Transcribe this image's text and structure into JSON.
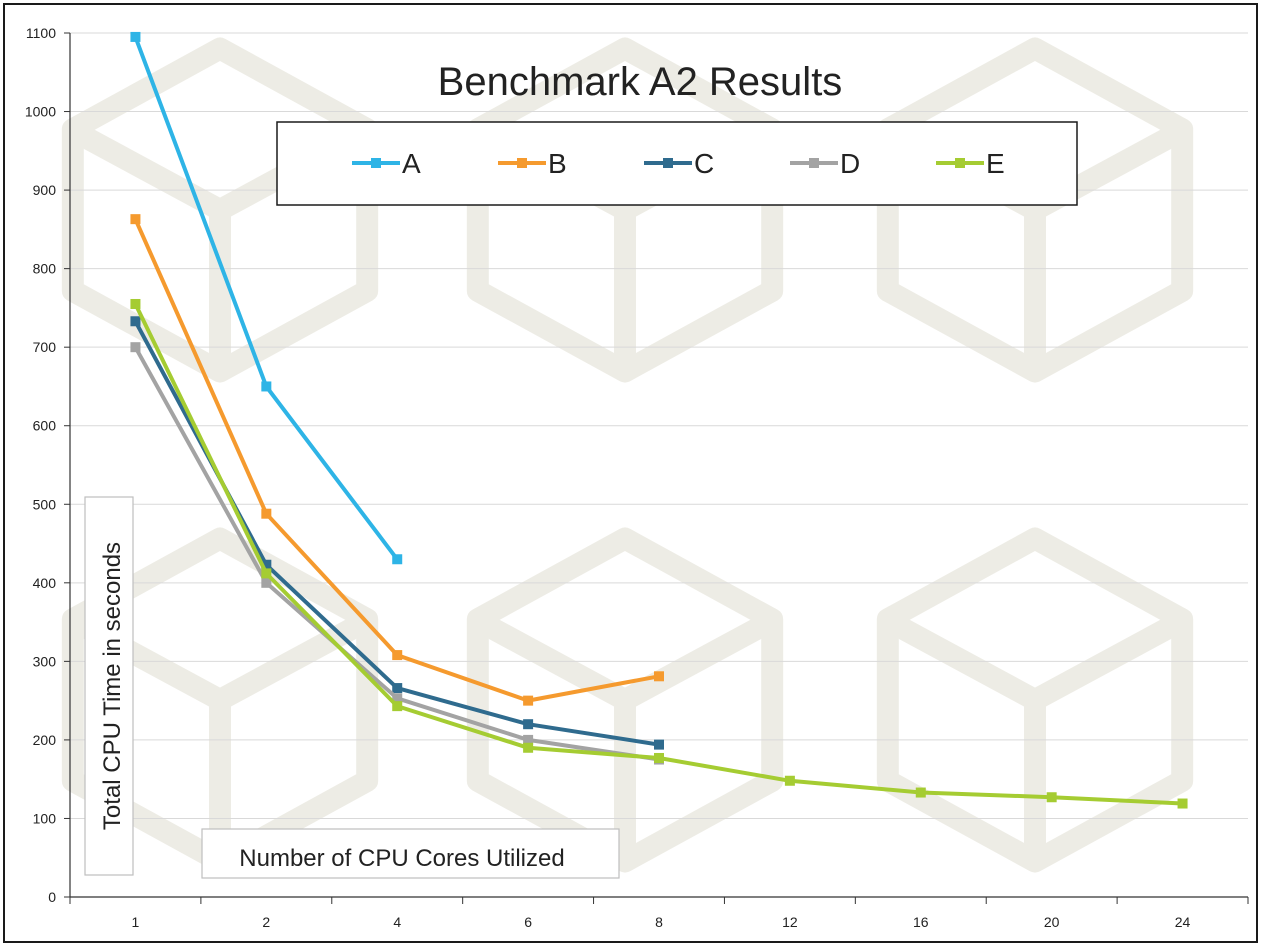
{
  "chart_data": {
    "type": "line",
    "title": "Benchmark A2 Results",
    "xlabel": "Number of CPU Cores Utilized",
    "ylabel": "Total CPU Time in seconds",
    "categories": [
      "1",
      "2",
      "4",
      "6",
      "8",
      "12",
      "16",
      "20",
      "24"
    ],
    "y_ticks": [
      0,
      100,
      200,
      300,
      400,
      500,
      600,
      700,
      800,
      900,
      1000,
      1100
    ],
    "ylim": [
      0,
      1100
    ],
    "grid": true,
    "legend_position": "top-center",
    "series": [
      {
        "name": "A",
        "color": "#2EB4E6",
        "values": [
          1095,
          650,
          430,
          null,
          null,
          null,
          null,
          null,
          null
        ]
      },
      {
        "name": "B",
        "color": "#F59A2E",
        "values": [
          863,
          488,
          308,
          250,
          281,
          null,
          null,
          null,
          null
        ]
      },
      {
        "name": "C",
        "color": "#2F6B8E",
        "values": [
          733,
          423,
          266,
          220,
          194,
          null,
          null,
          null,
          null
        ]
      },
      {
        "name": "D",
        "color": "#A3A3A3",
        "values": [
          700,
          400,
          253,
          200,
          175,
          null,
          null,
          null,
          null
        ]
      },
      {
        "name": "E",
        "color": "#A5CC32",
        "values": [
          755,
          412,
          243,
          190,
          177,
          148,
          133,
          127,
          119
        ]
      }
    ]
  }
}
